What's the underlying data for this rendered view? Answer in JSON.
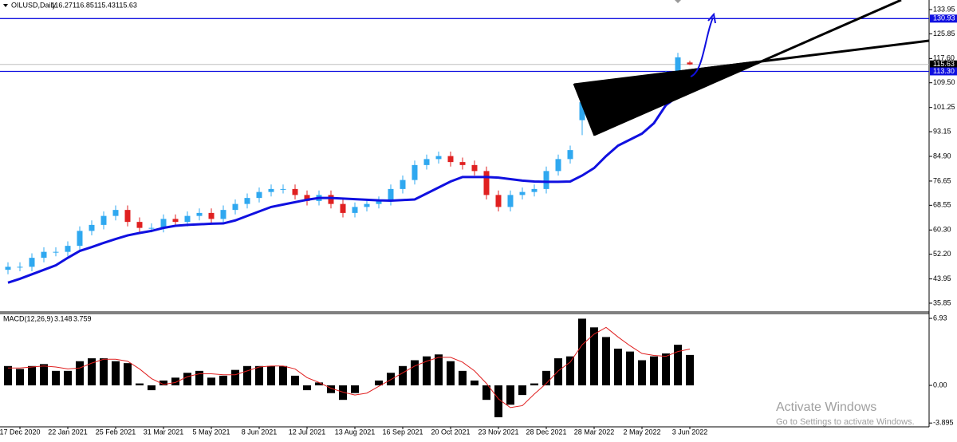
{
  "symbol": "OILUSD,Daily",
  "watermark": {
    "title": "Activate Windows",
    "subtitle": "Go to Settings to activate Windows."
  },
  "chart_data": [
    {
      "type": "candlestick",
      "categories": [
        null,
        "17 Dec 2020",
        null,
        null,
        null,
        "22 Jan 2021",
        null,
        null,
        null,
        "25 Feb 2021",
        null,
        null,
        null,
        "31 Mar 2021",
        null,
        null,
        null,
        "5 May 2021",
        null,
        null,
        null,
        "8 Jun 2021",
        null,
        null,
        null,
        "12 Jul 2021",
        null,
        null,
        null,
        "13 Aug 2021",
        null,
        null,
        null,
        "16 Sep 2021",
        null,
        null,
        null,
        "20 Oct 2021",
        null,
        null,
        null,
        "23 Nov 2021",
        null,
        null,
        null,
        "28 Dec 2021",
        null,
        null,
        null,
        "28 Mar 2022",
        null,
        null,
        null,
        "2 May 2022",
        null,
        null,
        null,
        "3 Jun 2022"
      ],
      "open": [
        47,
        48,
        48,
        51,
        53,
        53,
        55,
        60,
        62,
        65,
        67,
        63,
        61,
        61,
        64,
        63,
        65,
        66,
        64,
        67,
        69,
        71,
        73,
        74,
        74,
        72,
        70,
        72,
        69,
        66,
        68,
        69,
        70,
        74,
        77,
        82,
        84,
        85,
        83,
        82,
        80,
        72,
        68,
        72,
        73,
        74,
        80,
        84,
        97,
        103,
        100,
        101,
        104,
        106,
        107,
        109,
        112,
        116.27
      ],
      "high": [
        49.5,
        49.5,
        52.5,
        54.5,
        54.5,
        56.5,
        61.5,
        63.5,
        66.5,
        68.5,
        68.5,
        64.5,
        62.5,
        65.5,
        65.5,
        66.5,
        67.5,
        67.5,
        68.5,
        70.5,
        72.5,
        74.5,
        75.5,
        75.5,
        75.5,
        73.5,
        73.5,
        73.5,
        70.5,
        69.5,
        70.5,
        71.5,
        75.5,
        78.5,
        83.5,
        85.5,
        86.5,
        86.5,
        84.5,
        83.5,
        81.5,
        73.5,
        73.5,
        74.5,
        75.5,
        81.5,
        85.5,
        88.5,
        104.5,
        104.5,
        102.5,
        105.5,
        107.5,
        108.5,
        110.5,
        113.5,
        119.5,
        116.85
      ],
      "low": [
        45.5,
        46.5,
        46.5,
        49.5,
        51.5,
        51.5,
        53.5,
        58.5,
        60.5,
        63.5,
        61.5,
        59.5,
        59.5,
        59.5,
        61.5,
        61.5,
        63.5,
        62.5,
        62.5,
        65.5,
        67.5,
        69.5,
        71.5,
        72.5,
        70.5,
        68.5,
        68.5,
        67.5,
        64.5,
        64.5,
        66.5,
        67.5,
        68.5,
        72.5,
        75.5,
        80.5,
        82.5,
        81.5,
        80.5,
        78.5,
        70.5,
        66.5,
        66.5,
        70.5,
        71.5,
        72.5,
        78.5,
        82.5,
        92,
        98.5,
        98.5,
        99.5,
        102.5,
        104.5,
        105.5,
        107.5,
        110.5,
        115.43
      ],
      "close": [
        48,
        48,
        51,
        53,
        53,
        55,
        60,
        62,
        65,
        67,
        63,
        61,
        61,
        64,
        63,
        65,
        66,
        64,
        67,
        69,
        71,
        73,
        74,
        74,
        72,
        70,
        72,
        69,
        66,
        68,
        69,
        70,
        74,
        77,
        82,
        84,
        85,
        83,
        82,
        80,
        72,
        68,
        72,
        73,
        74,
        80,
        84,
        87,
        103,
        100,
        101,
        104,
        106,
        107,
        109,
        112,
        118,
        115.63
      ],
      "up_color": "#2fa8f0",
      "down_color": "#e02020",
      "ma": {
        "color": "#1010e0",
        "values": [
          42.7,
          44,
          45.5,
          47,
          48.5,
          51,
          53.3,
          54.6,
          56,
          57.3,
          58.5,
          59.3,
          60,
          61,
          61.7,
          62,
          62.2,
          62.4,
          62.5,
          63.5,
          65,
          66.5,
          68,
          68.8,
          69.6,
          70.4,
          71,
          71,
          70.8,
          70.6,
          70.4,
          70.2,
          70.1,
          70.3,
          70.5,
          72.5,
          74.5,
          76.5,
          78,
          78,
          78,
          77.8,
          77.3,
          76.8,
          76.5,
          76.4,
          76.4,
          76.5,
          78.5,
          81,
          85,
          88.5,
          90.5,
          92.5,
          96,
          102,
          105,
          107.3
        ]
      },
      "levels": [
        {
          "value": 130.93,
          "label": "130.93"
        },
        {
          "value": 113.3,
          "label": "113.30"
        }
      ],
      "level_color": "#1010e0",
      "ylim": [
        33.18,
        137.15
      ],
      "yticks": [
        35.85,
        43.95,
        {
          "value": 52.2,
          "label": "52.20"
        },
        {
          "value": 60.3,
          "label": "60.30"
        },
        68.55,
        76.65,
        {
          "value": 84.9,
          "label": "84.90"
        },
        93.15,
        101.25,
        {
          "value": 109.5,
          "label": "109.50"
        },
        {
          "value": 117.6,
          "label": "117.60"
        },
        125.85,
        133.95
      ]
    },
    {
      "type": "bar",
      "name": "MACD(12,26,9)",
      "values": [
        2.0,
        1.7,
        2.0,
        2.2,
        1.5,
        1.5,
        2.5,
        2.8,
        2.8,
        2.5,
        2.3,
        0.2,
        -0.5,
        0.5,
        0.8,
        1.3,
        1.5,
        0.8,
        1.0,
        1.6,
        2.0,
        2.0,
        2.0,
        2.0,
        1.0,
        -0.5,
        0.3,
        -0.8,
        -1.5,
        -0.8,
        0,
        0.5,
        1.3,
        2.0,
        2.6,
        3.0,
        3.2,
        2.5,
        1.5,
        0.5,
        -1.5,
        -3.3,
        -2.0,
        -1.0,
        0.2,
        1.5,
        2.8,
        3.0,
        6.9,
        6.0,
        5.0,
        3.8,
        3.5,
        2.6,
        3.0,
        3.3,
        4.2,
        3.148
      ],
      "color": "#000000",
      "signal": {
        "color": "#e02020",
        "values": [
          1.8,
          1.8,
          1.9,
          2.0,
          1.9,
          1.7,
          1.8,
          2.3,
          2.7,
          2.7,
          2.5,
          1.7,
          0.7,
          0.1,
          0.3,
          0.9,
          1.2,
          1.2,
          1.1,
          1.1,
          1.5,
          1.9,
          2.0,
          2.0,
          1.7,
          0.8,
          0.3,
          -0.3,
          -0.7,
          -1.0,
          -0.8,
          -0.1,
          0.6,
          1.3,
          2.0,
          2.5,
          2.9,
          2.9,
          2.4,
          1.5,
          0.2,
          -1.4,
          -2.3,
          -2.1,
          -0.9,
          0.2,
          1.5,
          2.4,
          4.2,
          5.3,
          6.0,
          5.0,
          4.1,
          3.3,
          3.1,
          3.0,
          3.5,
          3.759
        ]
      },
      "ylim": [
        -4.29,
        7.43
      ],
      "yticks": [
        6.93,
        {
          "value": 0,
          "label": "0.00"
        },
        -3.895
      ]
    }
  ]
}
